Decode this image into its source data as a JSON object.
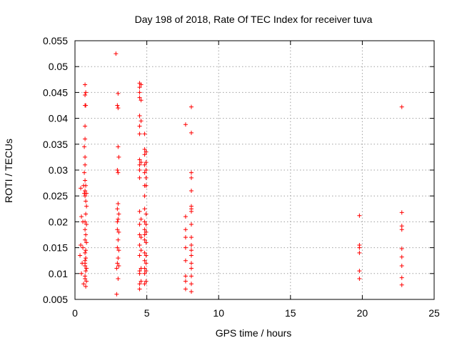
{
  "chart_data": {
    "type": "scatter",
    "title": "Day 198 of 2018, Rate Of TEC Index for receiver tuva",
    "xlabel": "GPS time / hours",
    "ylabel": "ROTI / TECUs",
    "xlim": [
      0,
      25
    ],
    "ylim": [
      0.005,
      0.055
    ],
    "x_ticks": [
      0,
      5,
      10,
      15,
      20,
      25
    ],
    "y_ticks": [
      0.005,
      0.01,
      0.015,
      0.02,
      0.025,
      0.03,
      0.035,
      0.04,
      0.045,
      0.05,
      0.055
    ],
    "x_tick_labels": [
      "0",
      "5",
      "10",
      "15",
      "20",
      "25"
    ],
    "y_tick_labels": [
      "0.005",
      "0.01",
      "0.015",
      "0.02",
      "0.025",
      "0.03",
      "0.035",
      "0.04",
      "0.045",
      "0.05",
      "0.055"
    ],
    "grid": true,
    "marker": "+",
    "marker_color": "#ff0000",
    "series": [
      {
        "name": "ROTI",
        "points": [
          [
            0.35,
            0.0135
          ],
          [
            0.4,
            0.0155
          ],
          [
            0.4,
            0.0265
          ],
          [
            0.45,
            0.01
          ],
          [
            0.45,
            0.021
          ],
          [
            0.5,
            0.012
          ],
          [
            0.55,
            0.015
          ],
          [
            0.55,
            0.02
          ],
          [
            0.6,
            0.027
          ],
          [
            0.6,
            0.008
          ],
          [
            0.65,
            0.0255
          ],
          [
            0.65,
            0.0295
          ],
          [
            0.65,
            0.0345
          ],
          [
            0.7,
            0.009
          ],
          [
            0.7,
            0.0095
          ],
          [
            0.7,
            0.0115
          ],
          [
            0.7,
            0.012
          ],
          [
            0.7,
            0.0125
          ],
          [
            0.7,
            0.014
          ],
          [
            0.7,
            0.0165
          ],
          [
            0.7,
            0.0185
          ],
          [
            0.7,
            0.02
          ],
          [
            0.7,
            0.025
          ],
          [
            0.7,
            0.026
          ],
          [
            0.7,
            0.028
          ],
          [
            0.7,
            0.031
          ],
          [
            0.7,
            0.0325
          ],
          [
            0.7,
            0.036
          ],
          [
            0.7,
            0.0385
          ],
          [
            0.7,
            0.0425
          ],
          [
            0.7,
            0.0445
          ],
          [
            0.7,
            0.0465
          ],
          [
            0.75,
            0.0075
          ],
          [
            0.75,
            0.0105
          ],
          [
            0.75,
            0.013
          ],
          [
            0.75,
            0.0145
          ],
          [
            0.75,
            0.0175
          ],
          [
            0.75,
            0.0215
          ],
          [
            0.75,
            0.024
          ],
          [
            0.75,
            0.027
          ],
          [
            0.75,
            0.0425
          ],
          [
            0.75,
            0.045
          ],
          [
            0.8,
            0.0085
          ],
          [
            0.8,
            0.011
          ],
          [
            0.8,
            0.016
          ],
          [
            0.8,
            0.0195
          ],
          [
            0.8,
            0.023
          ],
          [
            0.8,
            0.0255
          ],
          [
            2.85,
            0.0525
          ],
          [
            2.9,
            0.006
          ],
          [
            2.9,
            0.011
          ],
          [
            2.95,
            0.012
          ],
          [
            2.95,
            0.015
          ],
          [
            2.95,
            0.0185
          ],
          [
            2.95,
            0.02
          ],
          [
            2.95,
            0.0225
          ],
          [
            2.95,
            0.03
          ],
          [
            2.95,
            0.0425
          ],
          [
            3.0,
            0.009
          ],
          [
            3.0,
            0.013
          ],
          [
            3.0,
            0.0165
          ],
          [
            3.0,
            0.0205
          ],
          [
            3.0,
            0.0235
          ],
          [
            3.0,
            0.0295
          ],
          [
            3.0,
            0.0345
          ],
          [
            3.0,
            0.042
          ],
          [
            3.0,
            0.0448
          ],
          [
            3.05,
            0.0115
          ],
          [
            3.05,
            0.0145
          ],
          [
            3.05,
            0.018
          ],
          [
            3.05,
            0.0215
          ],
          [
            3.05,
            0.0325
          ],
          [
            4.5,
            0.007
          ],
          [
            4.5,
            0.008
          ],
          [
            4.5,
            0.01
          ],
          [
            4.5,
            0.0105
          ],
          [
            4.5,
            0.0135
          ],
          [
            4.5,
            0.0155
          ],
          [
            4.5,
            0.0175
          ],
          [
            4.5,
            0.0195
          ],
          [
            4.5,
            0.022
          ],
          [
            4.5,
            0.0285
          ],
          [
            4.5,
            0.03
          ],
          [
            4.5,
            0.031
          ],
          [
            4.5,
            0.032
          ],
          [
            4.5,
            0.037
          ],
          [
            4.5,
            0.0385
          ],
          [
            4.5,
            0.0405
          ],
          [
            4.5,
            0.044
          ],
          [
            4.5,
            0.045
          ],
          [
            4.5,
            0.046
          ],
          [
            4.5,
            0.0468
          ],
          [
            4.6,
            0.0085
          ],
          [
            4.6,
            0.011
          ],
          [
            4.6,
            0.0145
          ],
          [
            4.6,
            0.017
          ],
          [
            4.6,
            0.0205
          ],
          [
            4.6,
            0.0315
          ],
          [
            4.6,
            0.0395
          ],
          [
            4.6,
            0.0435
          ],
          [
            4.6,
            0.0465
          ],
          [
            4.85,
            0.008
          ],
          [
            4.85,
            0.01
          ],
          [
            4.85,
            0.011
          ],
          [
            4.85,
            0.0125
          ],
          [
            4.85,
            0.014
          ],
          [
            4.85,
            0.0165
          ],
          [
            4.85,
            0.0175
          ],
          [
            4.85,
            0.0185
          ],
          [
            4.85,
            0.02
          ],
          [
            4.85,
            0.0225
          ],
          [
            4.85,
            0.025
          ],
          [
            4.85,
            0.027
          ],
          [
            4.85,
            0.0295
          ],
          [
            4.85,
            0.031
          ],
          [
            4.85,
            0.033
          ],
          [
            4.85,
            0.034
          ],
          [
            4.85,
            0.037
          ],
          [
            4.95,
            0.0085
          ],
          [
            4.95,
            0.0105
          ],
          [
            4.95,
            0.012
          ],
          [
            4.95,
            0.0135
          ],
          [
            4.95,
            0.016
          ],
          [
            4.95,
            0.018
          ],
          [
            4.95,
            0.0195
          ],
          [
            4.95,
            0.0215
          ],
          [
            4.95,
            0.027
          ],
          [
            4.95,
            0.0285
          ],
          [
            4.95,
            0.03
          ],
          [
            4.95,
            0.0315
          ],
          [
            4.95,
            0.0335
          ],
          [
            7.7,
            0.007
          ],
          [
            7.7,
            0.0085
          ],
          [
            7.7,
            0.0095
          ],
          [
            7.7,
            0.0125
          ],
          [
            7.7,
            0.015
          ],
          [
            7.7,
            0.017
          ],
          [
            7.7,
            0.0185
          ],
          [
            7.7,
            0.021
          ],
          [
            7.7,
            0.0388
          ],
          [
            8.1,
            0.0065
          ],
          [
            8.1,
            0.008
          ],
          [
            8.1,
            0.0095
          ],
          [
            8.1,
            0.011
          ],
          [
            8.1,
            0.012
          ],
          [
            8.1,
            0.0135
          ],
          [
            8.1,
            0.0145
          ],
          [
            8.1,
            0.0155
          ],
          [
            8.1,
            0.017
          ],
          [
            8.1,
            0.0195
          ],
          [
            8.1,
            0.022
          ],
          [
            8.1,
            0.0225
          ],
          [
            8.1,
            0.023
          ],
          [
            8.1,
            0.026
          ],
          [
            8.1,
            0.0285
          ],
          [
            8.1,
            0.0295
          ],
          [
            8.1,
            0.0372
          ],
          [
            8.1,
            0.0422
          ],
          [
            19.8,
            0.009
          ],
          [
            19.8,
            0.0105
          ],
          [
            19.8,
            0.014
          ],
          [
            19.8,
            0.015
          ],
          [
            19.8,
            0.0155
          ],
          [
            19.8,
            0.0212
          ],
          [
            22.75,
            0.0078
          ],
          [
            22.75,
            0.0092
          ],
          [
            22.75,
            0.0115
          ],
          [
            22.75,
            0.0132
          ],
          [
            22.75,
            0.0148
          ],
          [
            22.75,
            0.0185
          ],
          [
            22.75,
            0.0192
          ],
          [
            22.75,
            0.0218
          ],
          [
            22.75,
            0.0422
          ]
        ]
      }
    ]
  }
}
